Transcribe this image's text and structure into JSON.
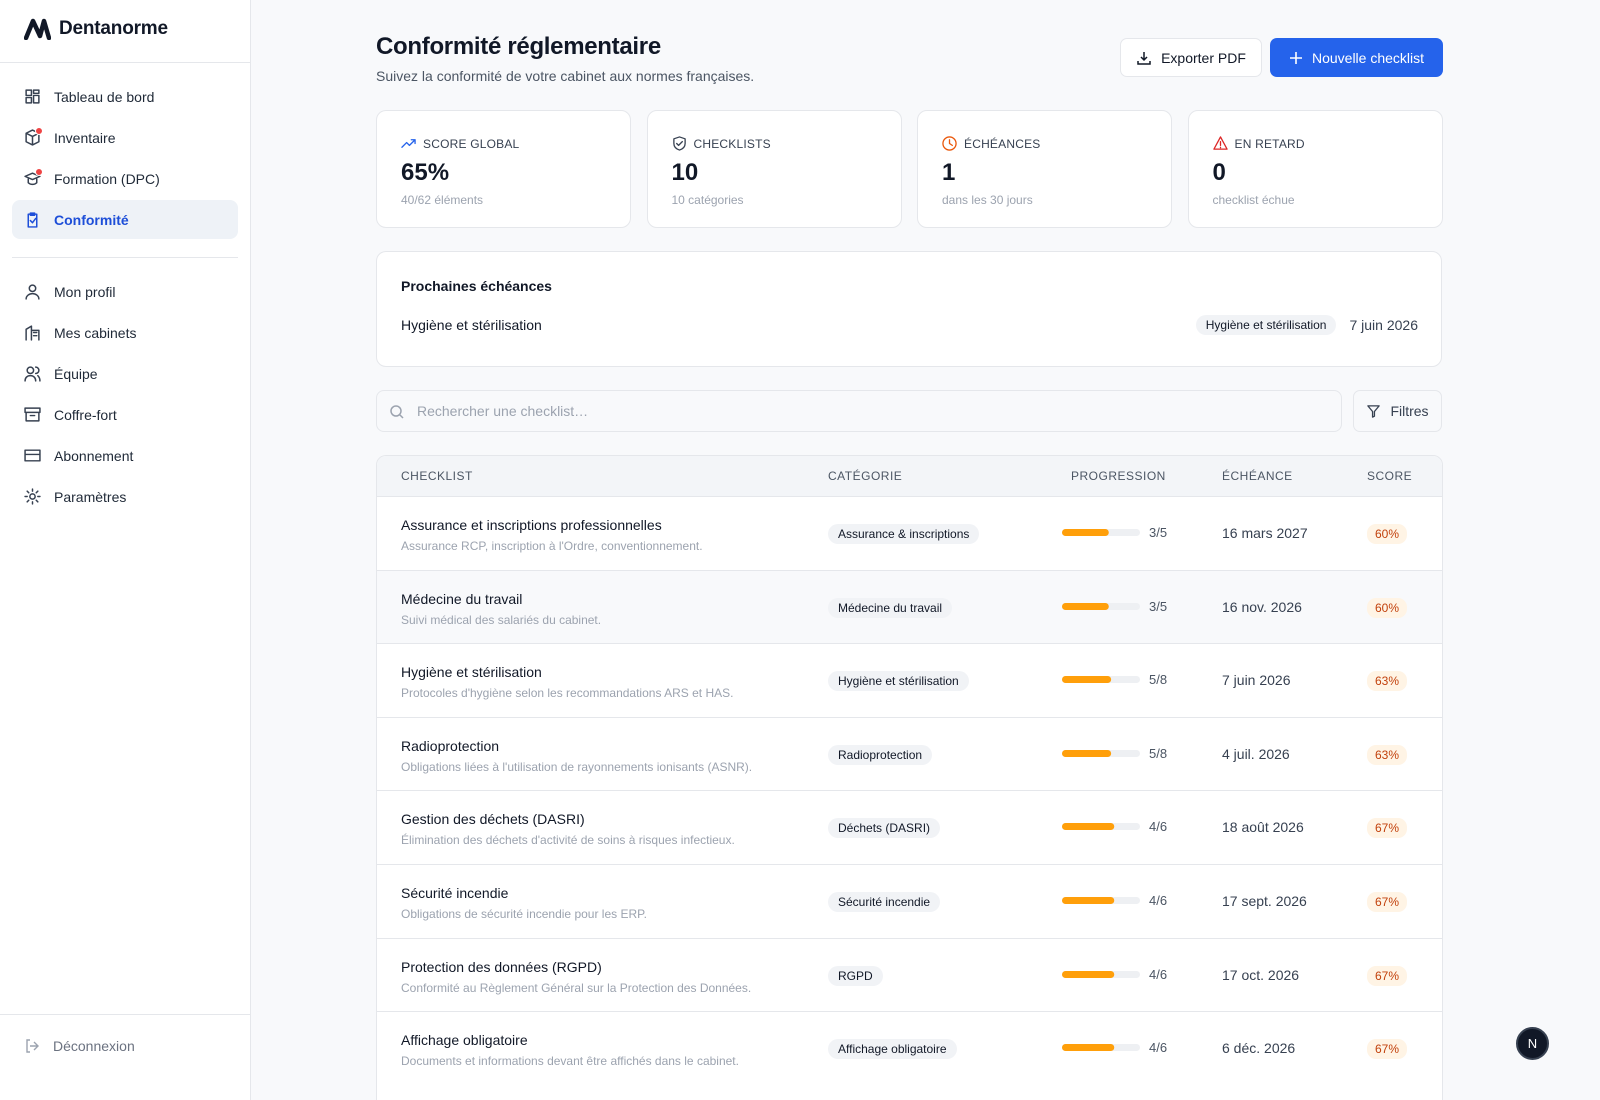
{
  "brand": "Dentanorme",
  "nav": {
    "main": [
      {
        "label": "Tableau de bord"
      },
      {
        "label": "Inventaire",
        "notification": true
      },
      {
        "label": "Formation (DPC)",
        "notification": true
      },
      {
        "label": "Conformité",
        "active": true
      }
    ],
    "account": [
      {
        "label": "Mon profil"
      },
      {
        "label": "Mes cabinets"
      },
      {
        "label": "Équipe"
      },
      {
        "label": "Coffre-fort"
      },
      {
        "label": "Abonnement"
      },
      {
        "label": "Paramètres"
      }
    ],
    "logout": "Déconnexion"
  },
  "header": {
    "title": "Conformité réglementaire",
    "subtitle": "Suivez la conformité de votre cabinet aux normes françaises.",
    "export": "Exporter PDF",
    "create": "Nouvelle checklist"
  },
  "kpis": [
    {
      "label": "SCORE GLOBAL",
      "value": "65%",
      "detail": "40/62 éléments"
    },
    {
      "label": "CHECKLISTS",
      "value": "10",
      "detail": "10 catégories"
    },
    {
      "label": "ÉCHÉANCES",
      "value": "1",
      "detail": "dans les 30 jours"
    },
    {
      "label": "EN RETARD",
      "value": "0",
      "detail": "checklist échue"
    }
  ],
  "deadlines": {
    "title": "Prochaines échéances",
    "items": [
      {
        "name": "Hygiène et stérilisation",
        "category": "Hygiène et stérilisation",
        "date": "7 juin 2026"
      }
    ]
  },
  "search": {
    "placeholder": "Rechercher une checklist…",
    "filters": "Filtres"
  },
  "table": {
    "columns": [
      "CHECKLIST",
      "CATÉGORIE",
      "PROGRESSION",
      "ÉCHÉANCE",
      "SCORE"
    ],
    "rows": [
      {
        "name": "Assurance et inscriptions professionnelles",
        "description": "Assurance RCP, inscription à l'Ordre, conventionnement.",
        "category": "Assurance & inscriptions",
        "progress": "3/5",
        "due": "16 mars 2027",
        "score": {
          "value": 60,
          "label": "60%"
        }
      },
      {
        "name": "Médecine du travail",
        "description": "Suivi médical des salariés du cabinet.",
        "category": "Médecine du travail",
        "progress": "3/5",
        "due": "16 nov. 2026",
        "score": {
          "value": 60,
          "label": "60%"
        }
      },
      {
        "name": "Hygiène et stérilisation",
        "description": "Protocoles d'hygiène selon les recommandations ARS et HAS.",
        "category": "Hygiène et stérilisation",
        "progress": "5/8",
        "due": "7 juin 2026",
        "score": {
          "value": 63,
          "label": "63%"
        }
      },
      {
        "name": "Radioprotection",
        "description": "Obligations liées à l'utilisation de rayonnements ionisants (ASNR).",
        "category": "Radioprotection",
        "progress": "5/8",
        "due": "4 juil. 2026",
        "score": {
          "value": 63,
          "label": "63%"
        }
      },
      {
        "name": "Gestion des déchets (DASRI)",
        "description": "Élimination des déchets d'activité de soins à risques infectieux.",
        "category": "Déchets (DASRI)",
        "progress": "4/6",
        "due": "18 août 2026",
        "score": {
          "value": 67,
          "label": "67%"
        }
      },
      {
        "name": "Sécurité incendie",
        "description": "Obligations de sécurité incendie pour les ERP.",
        "category": "Sécurité incendie",
        "progress": "4/6",
        "due": "17 sept. 2026",
        "score": {
          "value": 67,
          "label": "67%"
        }
      },
      {
        "name": "Protection des données (RGPD)",
        "description": "Conformité au Règlement Général sur la Protection des Données.",
        "category": "RGPD",
        "progress": "4/6",
        "due": "17 oct. 2026",
        "score": {
          "value": 67,
          "label": "67%"
        }
      },
      {
        "name": "Affichage obligatoire",
        "description": "Documents et informations devant être affichés dans le cabinet.",
        "category": "Affichage obligatoire",
        "progress": "4/6",
        "due": "6 déc. 2026",
        "score": {
          "value": 67,
          "label": "67%"
        }
      }
    ]
  },
  "avatar": "N"
}
